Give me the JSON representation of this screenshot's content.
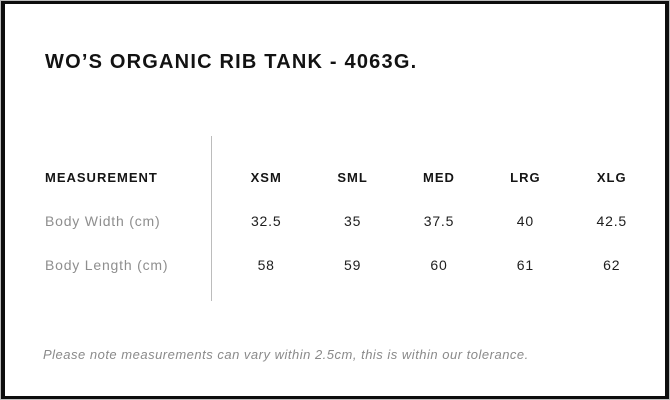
{
  "title": "WO’S ORGANIC RIB TANK - 4063G.",
  "table": {
    "measurement_header": "MEASUREMENT",
    "size_headers": [
      "XSM",
      "SML",
      "MED",
      "LRG",
      "XLG"
    ],
    "rows": [
      {
        "label": "Body Width (cm)",
        "values": [
          "32.5",
          "35",
          "37.5",
          "40",
          "42.5"
        ]
      },
      {
        "label": "Body Length (cm)",
        "values": [
          "58",
          "59",
          "60",
          "61",
          "62"
        ]
      }
    ]
  },
  "note": "Please note measurements can vary within 2.5cm, this is within our tolerance.",
  "colors": {
    "frame_border": "#0d0d0d",
    "outer_edge": "#bdbdbd",
    "heading_text": "#121212",
    "header_cell_text": "#151515",
    "row_label_text": "#8e8e8e",
    "value_text": "#1e1e1e",
    "divider": "#bcbcbc",
    "note_text": "#8a8a8a",
    "background": "#ffffff"
  }
}
